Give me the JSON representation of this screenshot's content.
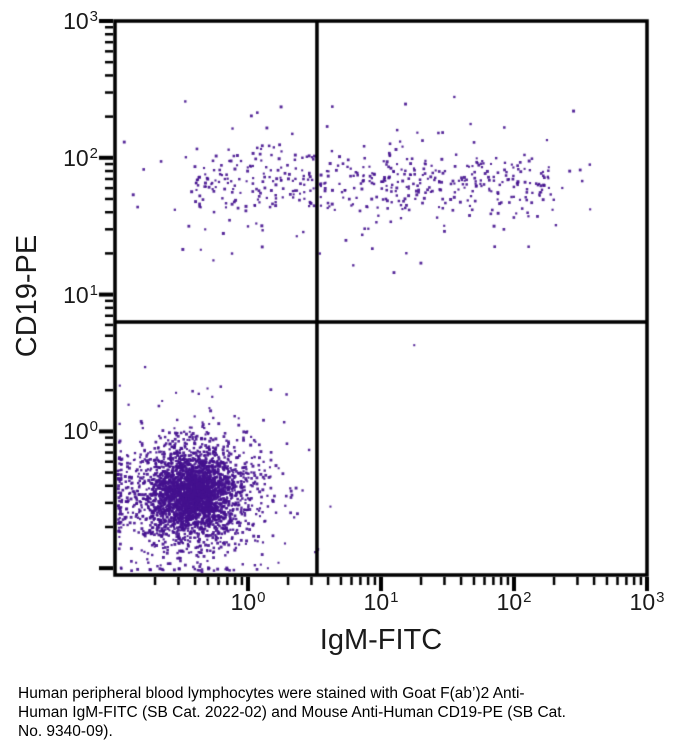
{
  "chart_data": {
    "type": "scatter",
    "title": "",
    "xlabel": "IgM-FITC",
    "ylabel": "CD19-PE",
    "x_scale": "log",
    "y_scale": "log",
    "x_range": [
      0.1,
      1000
    ],
    "y_range": [
      0.089,
      1000
    ],
    "x_tick_exponents": [
      0,
      1,
      2,
      3
    ],
    "y_tick_exponents": [
      0,
      1,
      2,
      3
    ],
    "grid": false,
    "legend": false,
    "quadrant_gate": {
      "x_value": 3.3,
      "y_value": 6.3
    },
    "dot_color": "#45128f",
    "frame_color": "#000000",
    "seed": 20220902,
    "populations": [
      {
        "name": "CD19+ B cells (IgM range band)",
        "count": 540,
        "x_log_min": -0.4,
        "x_log_max": 2.3,
        "uniform_frac": 0.82,
        "x_gauss_mean": 0.95,
        "x_gauss_sigma": 0.95,
        "y_log_mean": 1.82,
        "y_core_frac": 0.86,
        "y_sigma": 0.13,
        "y_tail_sigma": 0.3
      },
      {
        "name": "CD19- IgM- lymphocytes (double negative)",
        "count": 3300,
        "x_log_mean": -0.42,
        "y_log_mean": -0.46,
        "components": [
          {
            "frac": 0.5,
            "sx": 0.14,
            "sy": 0.13
          },
          {
            "frac": 0.35,
            "sx": 0.24,
            "sy": 0.2
          },
          {
            "frac": 0.15,
            "sx": 0.38,
            "sy": 0.3
          }
        ]
      }
    ],
    "outliers_log": [
      [
        0.07,
        2.33
      ],
      [
        2.57,
        1.95
      ],
      [
        0.1,
        1.98
      ],
      [
        2.29,
        1.62
      ],
      [
        -0.26,
        1.25
      ],
      [
        -0.12,
        1.3
      ],
      [
        0.11,
        1.47
      ],
      [
        0.54,
        1.3
      ],
      [
        -0.55,
        1.62
      ],
      [
        -0.49,
        1.33
      ],
      [
        1.3,
        1.23
      ],
      [
        1.85,
        1.5
      ],
      [
        2.11,
        1.35
      ],
      [
        0.29,
        0.27
      ],
      [
        -0.29,
        0.17
      ],
      [
        -0.3,
        -0.02
      ],
      [
        0.62,
        -0.55
      ],
      [
        1.25,
        0.63
      ]
    ]
  },
  "caption": {
    "lines": [
      "Human peripheral blood lymphocytes were stained with Goat F(ab’)2 Anti-",
      "Human IgM-FITC (SB Cat. 2022-02) and Mouse Anti-Human CD19-PE (SB Cat.",
      "No. 9340-09)."
    ]
  }
}
